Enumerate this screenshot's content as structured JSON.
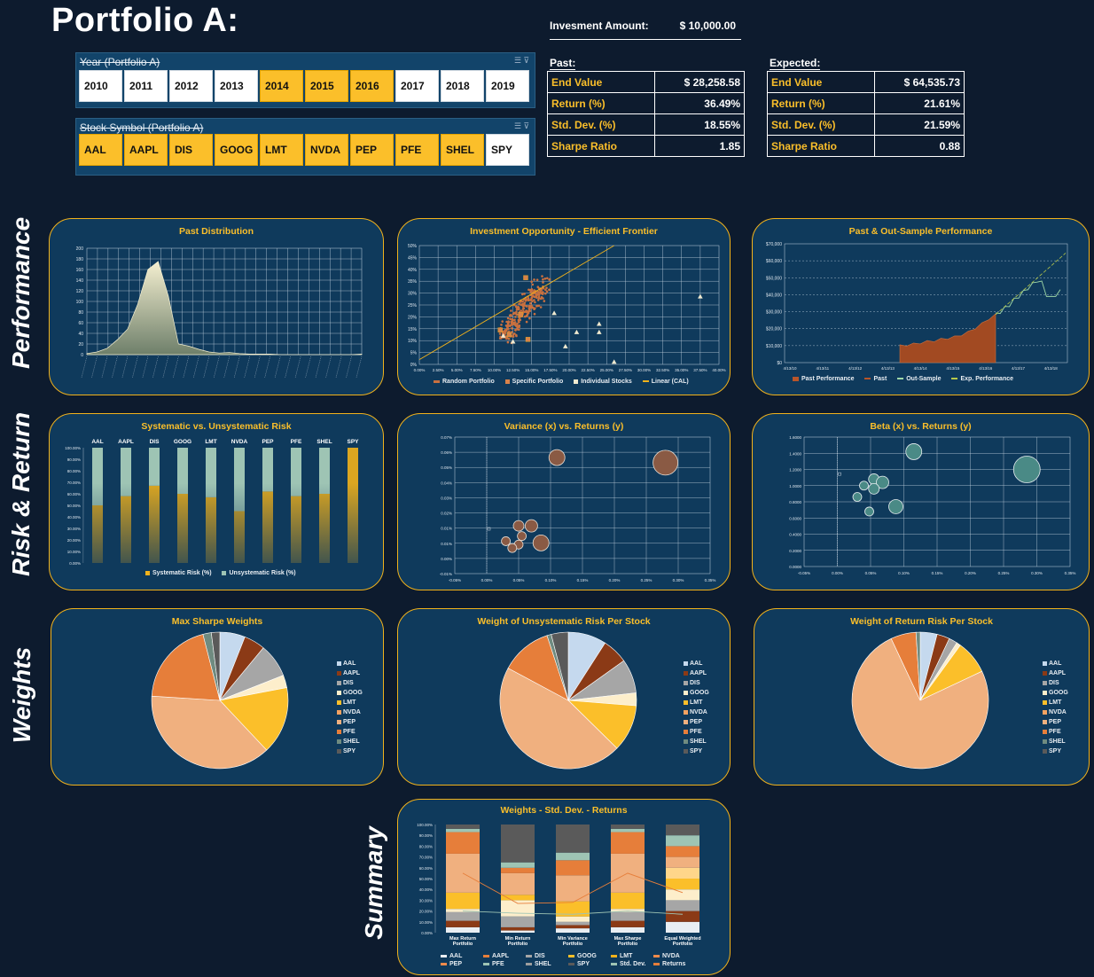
{
  "title": "Portfolio A:",
  "investment": {
    "label": "Invesment Amount:",
    "value": "$   10,000.00"
  },
  "slicer_year": {
    "header": "Year (Portfolio A)",
    "items": [
      {
        "label": "2010",
        "selected": false
      },
      {
        "label": "2011",
        "selected": false
      },
      {
        "label": "2012",
        "selected": false
      },
      {
        "label": "2013",
        "selected": false
      },
      {
        "label": "2014",
        "selected": true
      },
      {
        "label": "2015",
        "selected": true
      },
      {
        "label": "2016",
        "selected": true
      },
      {
        "label": "2017",
        "selected": false
      },
      {
        "label": "2018",
        "selected": false
      },
      {
        "label": "2019",
        "selected": false
      }
    ]
  },
  "slicer_symbol": {
    "header": "Stock Symbol (Portfolio A)",
    "items": [
      {
        "label": "AAL",
        "selected": true
      },
      {
        "label": "AAPL",
        "selected": true
      },
      {
        "label": "DIS",
        "selected": true
      },
      {
        "label": "GOOG",
        "selected": true
      },
      {
        "label": "LMT",
        "selected": true
      },
      {
        "label": "NVDA",
        "selected": true
      },
      {
        "label": "PEP",
        "selected": true
      },
      {
        "label": "PFE",
        "selected": true
      },
      {
        "label": "SHEL",
        "selected": true
      },
      {
        "label": "SPY",
        "selected": false
      }
    ]
  },
  "past": {
    "header": "Past:",
    "rows": [
      {
        "label": "End Value",
        "value": "$   28,258.58"
      },
      {
        "label": "Return (%)",
        "value": "36.49%"
      },
      {
        "label": "Std. Dev. (%)",
        "value": "18.55%"
      },
      {
        "label": "Sharpe Ratio",
        "value": "1.85"
      }
    ]
  },
  "expected": {
    "header": "Expected:",
    "rows": [
      {
        "label": "End Value",
        "value": "$          64,535.73"
      },
      {
        "label": "Return (%)",
        "value": "21.61%"
      },
      {
        "label": "Std. Dev. (%)",
        "value": "21.59%"
      },
      {
        "label": "Sharpe Ratio",
        "value": "0.88"
      }
    ]
  },
  "sections": {
    "performance": "Performance",
    "risk_return": "Risk & Return",
    "weights": "Weights",
    "summary": "Summary"
  },
  "colors": {
    "accent": "#fbbf2a",
    "panel": "#0f3a5c",
    "background": "#0d1b2e",
    "rust": "#b8552a"
  },
  "chart_titles": {
    "past_distribution": "Past Distribution",
    "efficient_frontier": "Investment Opportunity - Efficient Frontier",
    "past_out_sample": "Past & Out-Sample Performance",
    "sys_unsys": "Systematic vs. Unsystematic Risk",
    "var_returns": "Variance (x) vs. Returns (y)",
    "beta_returns": "Beta (x) vs. Returns (y)",
    "max_sharpe": "Max Sharpe Weights",
    "unsys_weight": "Weight of Unsystematic Risk Per Stock",
    "return_risk_weight": "Weight of Return Risk Per Stock",
    "summary": "Weights - Std. Dev. - Returns"
  },
  "legends": {
    "frontier": [
      "Random Portfolio",
      "Specific Portfolio",
      "Individual Stocks",
      "Linear (CAL)"
    ],
    "performance": [
      "Past Performance",
      "Past",
      "Out-Sample",
      "Exp. Performance"
    ],
    "sys_unsys": [
      "Systematic Risk (%)",
      "Unsystematic Risk (%)"
    ],
    "pie": [
      "AAL",
      "AAPL",
      "DIS",
      "GOOG",
      "LMT",
      "NVDA",
      "PEP",
      "PFE",
      "SHEL",
      "SPY"
    ],
    "summary": [
      "AAL",
      "AAPL",
      "DIS",
      "GOOG",
      "LMT",
      "NVDA",
      "PEP",
      "PFE",
      "SHEL",
      "SPY",
      "Std. Dev.",
      "Returns"
    ]
  },
  "chart_data": [
    {
      "type": "area",
      "title": "Past Distribution",
      "ylim": [
        0,
        200
      ],
      "yticks": [
        "0",
        "20",
        "40",
        "60",
        "80",
        "100",
        "120",
        "140",
        "160",
        "180",
        "200"
      ],
      "values": [
        2,
        5,
        12,
        28,
        48,
        95,
        160,
        175,
        110,
        20,
        16,
        10,
        5,
        3,
        4,
        2,
        1,
        1,
        1,
        0,
        0,
        0,
        0,
        0,
        0,
        0,
        0,
        1
      ]
    },
    {
      "type": "scatter",
      "title": "Investment Opportunity - Efficient Frontier",
      "xlim": [
        0,
        40
      ],
      "ylim": [
        0,
        50
      ],
      "xticks": [
        "0.00%",
        "2.50%",
        "5.00%",
        "7.50%",
        "10.00%",
        "12.50%",
        "15.00%",
        "17.50%",
        "20.00%",
        "22.50%",
        "25.00%",
        "27.50%",
        "30.00%",
        "32.50%",
        "35.00%",
        "37.50%",
        "40.00%"
      ],
      "yticks": [
        "0%",
        "5%",
        "10%",
        "15%",
        "20%",
        "25%",
        "30%",
        "35%",
        "40%",
        "45%",
        "50%"
      ],
      "specific": [
        [
          14.2,
          36.5
        ],
        [
          13.5,
          21
        ],
        [
          10.8,
          14.5
        ],
        [
          14.5,
          10.5
        ],
        [
          12,
          12.5
        ]
      ],
      "individual": [
        [
          37.5,
          28.5
        ],
        [
          18,
          21.5
        ],
        [
          11.2,
          12
        ],
        [
          21,
          13.5
        ],
        [
          24,
          17
        ],
        [
          24,
          13.5
        ],
        [
          19.5,
          7.5
        ],
        [
          12.5,
          9.5
        ],
        [
          26,
          1
        ]
      ],
      "cal": [
        [
          0,
          2
        ],
        [
          26,
          50
        ]
      ]
    },
    {
      "type": "line",
      "title": "Past & Out-Sample Performance",
      "ylim": [
        0,
        70000
      ],
      "yticks": [
        "$0",
        "$10,000",
        "$20,000",
        "$30,000",
        "$40,000",
        "$50,000",
        "$60,000",
        "$70,000"
      ],
      "xticks": [
        "4/13/10",
        "4/13/11",
        "4/13/12",
        "4/13/13",
        "4/13/14",
        "4/13/15",
        "4/13/16",
        "4/13/17",
        "4/13/18"
      ],
      "past": [
        10000,
        10500,
        11000,
        11800,
        12500,
        13000,
        13800,
        14500,
        15200,
        16500,
        18000,
        20500,
        23000,
        26000,
        28258
      ],
      "out_sample": [
        28258,
        30000,
        32000,
        34000,
        37000,
        39000,
        41500,
        44000,
        46000,
        48500,
        47000,
        40000,
        38000,
        40000,
        42000
      ],
      "expected": [
        28258,
        64535
      ]
    },
    {
      "type": "bar",
      "title": "Systematic vs. Unsystematic Risk",
      "categories": [
        "AAL",
        "AAPL",
        "DIS",
        "GOOG",
        "LMT",
        "NVDA",
        "PEP",
        "PFE",
        "SHEL",
        "SPY"
      ],
      "yticks": [
        "0.00%",
        "10.00%",
        "20.00%",
        "30.00%",
        "40.00%",
        "50.00%",
        "60.00%",
        "70.00%",
        "80.00%",
        "90.00%",
        "100.00%"
      ],
      "series": [
        {
          "name": "Systematic Risk (%)",
          "values": [
            50,
            58,
            67,
            60,
            57,
            45,
            62,
            58,
            60,
            100
          ]
        },
        {
          "name": "Unsystematic Risk (%)",
          "values": [
            50,
            42,
            33,
            40,
            43,
            55,
            38,
            42,
            40,
            0
          ]
        }
      ]
    },
    {
      "type": "scatter",
      "title": "Variance (x) vs. Returns (y)",
      "xticks": [
        "-0.05%",
        "0.00%",
        "0.05%",
        "0.10%",
        "0.15%",
        "0.20%",
        "0.25%",
        "0.30%",
        "0.35%"
      ],
      "yticks": [
        "-0.01%",
        "0.00%",
        "0.01%",
        "0.01%",
        "0.02%",
        "0.03%",
        "0.04%",
        "0.05%",
        "0.06%",
        "0.07%"
      ],
      "points": [
        [
          0.11,
          0.058,
          9
        ],
        [
          0.28,
          0.055,
          14
        ],
        [
          0.05,
          0.018,
          6
        ],
        [
          0.07,
          0.018,
          7
        ],
        [
          0.055,
          0.012,
          5
        ],
        [
          0.03,
          0.009,
          5
        ],
        [
          0.085,
          0.008,
          9
        ],
        [
          0.05,
          0.007,
          5
        ],
        [
          0.04,
          0.005,
          5
        ]
      ]
    },
    {
      "type": "scatter",
      "title": "Beta (x) vs. Returns (y)",
      "xticks": [
        "-0.05%",
        "0.00%",
        "0.05%",
        "0.10%",
        "0.15%",
        "0.20%",
        "0.25%",
        "0.30%",
        "0.35%"
      ],
      "yticks": [
        "0.0000",
        "0.2000",
        "0.4000",
        "0.6000",
        "0.8000",
        "1.0000",
        "1.2000",
        "1.4000",
        "1.6000"
      ],
      "points": [
        [
          0.115,
          1.42,
          9
        ],
        [
          0.285,
          1.2,
          15
        ],
        [
          0.055,
          1.08,
          6
        ],
        [
          0.068,
          1.04,
          7
        ],
        [
          0.04,
          1.0,
          5
        ],
        [
          0.055,
          0.96,
          6
        ],
        [
          0.03,
          0.86,
          5
        ],
        [
          0.088,
          0.74,
          8
        ],
        [
          0.048,
          0.68,
          5
        ]
      ]
    },
    {
      "type": "pie",
      "title": "Max Sharpe Weights",
      "labels": [
        "AAL",
        "AAPL",
        "DIS",
        "GOOG",
        "LMT",
        "NVDA",
        "PEP",
        "PFE",
        "SHEL",
        "SPY"
      ],
      "values": [
        6,
        5,
        8,
        3,
        16,
        0,
        38,
        20,
        2,
        2
      ]
    },
    {
      "type": "pie",
      "title": "Weight of Unsystematic Risk Per Stock",
      "labels": [
        "AAL",
        "AAPL",
        "DIS",
        "GOOG",
        "LMT",
        "NVDA",
        "PEP",
        "PFE",
        "SHEL",
        "SPY"
      ],
      "values": [
        9,
        6,
        8,
        3,
        11,
        0,
        45,
        12,
        1,
        4
      ]
    },
    {
      "type": "pie",
      "title": "Weight of Return Risk Per Stock",
      "labels": [
        "AAL",
        "AAPL",
        "DIS",
        "GOOG",
        "LMT",
        "NVDA",
        "PEP",
        "PFE",
        "SHEL",
        "SPY"
      ],
      "values": [
        4,
        3,
        2,
        1,
        8,
        0,
        75,
        6,
        1,
        0
      ]
    },
    {
      "type": "bar",
      "title": "Weights - Std. Dev. - Returns",
      "categories": [
        "Max Return Portfolio",
        "Min Return Portfolio",
        "Min Variance Portfolio",
        "Max Sharpe Portfolio",
        "Equal Weighted Portfolio"
      ],
      "yticks": [
        "0.00%",
        "10.00%",
        "20.00%",
        "30.00%",
        "40.00%",
        "50.00%",
        "60.00%",
        "70.00%",
        "80.00%",
        "90.00%",
        "100.00%"
      ],
      "series": [
        {
          "name": "AAL",
          "values": [
            5,
            2,
            4,
            5,
            10
          ]
        },
        {
          "name": "AAPL",
          "values": [
            6,
            3,
            3,
            6,
            10
          ]
        },
        {
          "name": "DIS",
          "values": [
            8,
            10,
            3,
            8,
            10
          ]
        },
        {
          "name": "GOOG",
          "values": [
            3,
            15,
            5,
            3,
            10
          ]
        },
        {
          "name": "LMT",
          "values": [
            15,
            5,
            14,
            15,
            10
          ]
        },
        {
          "name": "NVDA",
          "values": [
            0,
            0,
            0,
            0,
            10
          ]
        },
        {
          "name": "PEP",
          "values": [
            36,
            20,
            24,
            36,
            10
          ]
        },
        {
          "name": "PFE",
          "values": [
            20,
            5,
            14,
            20,
            10
          ]
        },
        {
          "name": "SHEL",
          "values": [
            3,
            5,
            7,
            3,
            10
          ]
        },
        {
          "name": "SPY",
          "values": [
            4,
            35,
            26,
            4,
            10
          ]
        }
      ],
      "std_dev": [
        20,
        18,
        17,
        20,
        17
      ],
      "returns": [
        55,
        27,
        28,
        55,
        37
      ]
    }
  ]
}
